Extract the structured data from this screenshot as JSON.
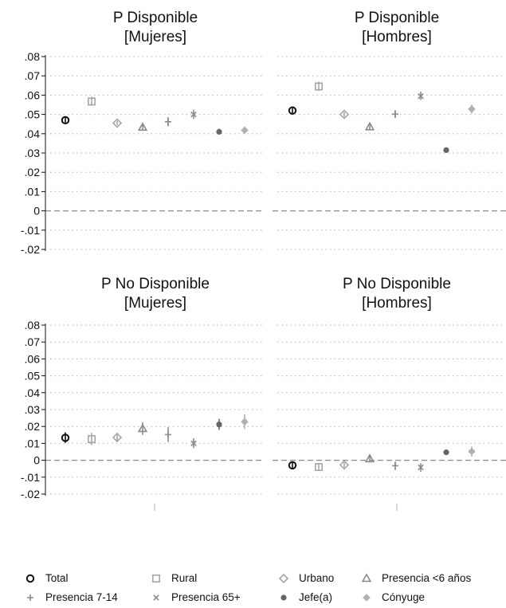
{
  "chart_data": {
    "type": "scatter",
    "categories": [
      "Total",
      "Rural",
      "Urbano",
      "Presencia <6 años",
      "Presencia 7-14",
      "Presencia 65+",
      "Jefe(a)",
      "Cónyuge"
    ],
    "ylim": [
      -0.02,
      0.08
    ],
    "yticks": [
      ".08",
      ".07",
      ".06",
      ".05",
      ".04",
      ".03",
      ".02",
      ".01",
      "0",
      "-.01",
      "-.02"
    ],
    "grid": true,
    "legend_position": "bottom",
    "zero_line": "dashed",
    "colors": {
      "Total": "#111111",
      "Rural": "#a6a6a6",
      "Urbano": "#a6a6a6",
      "Presencia <6 años": "#8a8a8a",
      "Presencia 7-14": "#8a8a8a",
      "Presencia 65+": "#8a8a8a",
      "Jefe(a)": "#666666",
      "Cónyuge": "#b0b0b0"
    },
    "markers": {
      "Total": "circle-open",
      "Rural": "square-open",
      "Urbano": "diamond-open",
      "Presencia <6 años": "triangle-open",
      "Presencia 7-14": "plus",
      "Presencia 65+": "x",
      "Jefe(a)": "circle",
      "Cónyuge": "diamond"
    },
    "panels": [
      {
        "title_line1": "P Disponible",
        "title_line2": "[Mujeres]",
        "points": [
          {
            "category": "Total",
            "value": 0.047,
            "low": 0.0455,
            "high": 0.0485
          },
          {
            "category": "Rural",
            "value": 0.0567,
            "low": 0.0545,
            "high": 0.0592
          },
          {
            "category": "Urbano",
            "value": 0.0455,
            "low": 0.0445,
            "high": 0.0467
          },
          {
            "category": "Presencia <6 años",
            "value": 0.0433,
            "low": 0.0418,
            "high": 0.0448
          },
          {
            "category": "Presencia 7-14",
            "value": 0.0462,
            "low": 0.0438,
            "high": 0.0486
          },
          {
            "category": "Presencia 65+",
            "value": 0.05,
            "low": 0.0477,
            "high": 0.0525
          },
          {
            "category": "Jefe(a)",
            "value": 0.041,
            "low": 0.0395,
            "high": 0.0425
          },
          {
            "category": "Cónyuge",
            "value": 0.0418,
            "low": 0.0405,
            "high": 0.0432
          }
        ]
      },
      {
        "title_line1": "P Disponible",
        "title_line2": "[Hombres]",
        "points": [
          {
            "category": "Total",
            "value": 0.052,
            "low": 0.0507,
            "high": 0.0533
          },
          {
            "category": "Rural",
            "value": 0.0645,
            "low": 0.0622,
            "high": 0.067
          },
          {
            "category": "Urbano",
            "value": 0.05,
            "low": 0.0488,
            "high": 0.0512
          },
          {
            "category": "Presencia <6 años",
            "value": 0.0435,
            "low": 0.042,
            "high": 0.045
          },
          {
            "category": "Presencia 7-14",
            "value": 0.0502,
            "low": 0.0482,
            "high": 0.0522
          },
          {
            "category": "Presencia 65+",
            "value": 0.0595,
            "low": 0.0575,
            "high": 0.0618
          },
          {
            "category": "Jefe(a)",
            "value": 0.0315,
            "low": 0.0308,
            "high": 0.0322
          },
          {
            "category": "Cónyuge",
            "value": 0.0528,
            "low": 0.0505,
            "high": 0.0552
          }
        ]
      },
      {
        "title_line1": "P No Disponible",
        "title_line2": "[Mujeres]",
        "points": [
          {
            "category": "Total",
            "value": 0.0133,
            "low": 0.0103,
            "high": 0.0165
          },
          {
            "category": "Rural",
            "value": 0.0125,
            "low": 0.009,
            "high": 0.0162
          },
          {
            "category": "Urbano",
            "value": 0.0135,
            "low": 0.0108,
            "high": 0.0162
          },
          {
            "category": "Presencia <6 años",
            "value": 0.0187,
            "low": 0.015,
            "high": 0.0225
          },
          {
            "category": "Presencia 7-14",
            "value": 0.0152,
            "low": 0.0108,
            "high": 0.0195
          },
          {
            "category": "Presencia 65+",
            "value": 0.01,
            "low": 0.0072,
            "high": 0.013
          },
          {
            "category": "Jefe(a)",
            "value": 0.0212,
            "low": 0.018,
            "high": 0.0245
          },
          {
            "category": "Cónyuge",
            "value": 0.0228,
            "low": 0.0185,
            "high": 0.0272
          }
        ]
      },
      {
        "title_line1": "P No Disponible",
        "title_line2": "[Hombres]",
        "points": [
          {
            "category": "Total",
            "value": -0.003,
            "low": -0.0048,
            "high": -0.0012
          },
          {
            "category": "Rural",
            "value": -0.004,
            "low": -0.006,
            "high": -0.002
          },
          {
            "category": "Urbano",
            "value": -0.0028,
            "low": -0.0043,
            "high": -0.0013
          },
          {
            "category": "Presencia <6 años",
            "value": 0.0008,
            "low": -0.0012,
            "high": 0.0028
          },
          {
            "category": "Presencia 7-14",
            "value": -0.0032,
            "low": -0.0058,
            "high": -0.0008
          },
          {
            "category": "Presencia 65+",
            "value": -0.0042,
            "low": -0.0068,
            "high": -0.0018
          },
          {
            "category": "Jefe(a)",
            "value": 0.0047,
            "low": 0.0038,
            "high": 0.0057
          },
          {
            "category": "Cónyuge",
            "value": 0.0052,
            "low": 0.0022,
            "high": 0.0082
          }
        ]
      }
    ]
  }
}
